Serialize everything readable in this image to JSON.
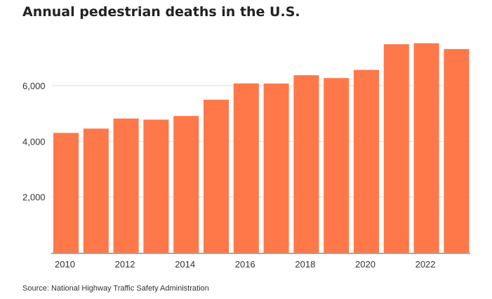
{
  "chart_data": {
    "type": "bar",
    "title": "Annual pedestrian deaths in the U.S.",
    "source": "Source: National Highway Traffic Safety Administration",
    "categories": [
      "2010",
      "2011",
      "2012",
      "2013",
      "2014",
      "2015",
      "2016",
      "2017",
      "2018",
      "2019",
      "2020",
      "2021",
      "2022",
      "2023"
    ],
    "values": [
      4302,
      4457,
      4818,
      4779,
      4910,
      5494,
      6080,
      6075,
      6374,
      6272,
      6565,
      7485,
      7522,
      7314
    ],
    "x_tick_labels": [
      "2010",
      "2012",
      "2014",
      "2016",
      "2018",
      "2020",
      "2022"
    ],
    "y_ticks": [
      2000,
      4000,
      6000
    ],
    "y_tick_labels": [
      "2,000",
      "4,000",
      "6,000"
    ],
    "ylim": [
      0,
      8000
    ],
    "xlabel": "",
    "ylabel": "",
    "grid": true,
    "bar_color": "#ff7849"
  }
}
